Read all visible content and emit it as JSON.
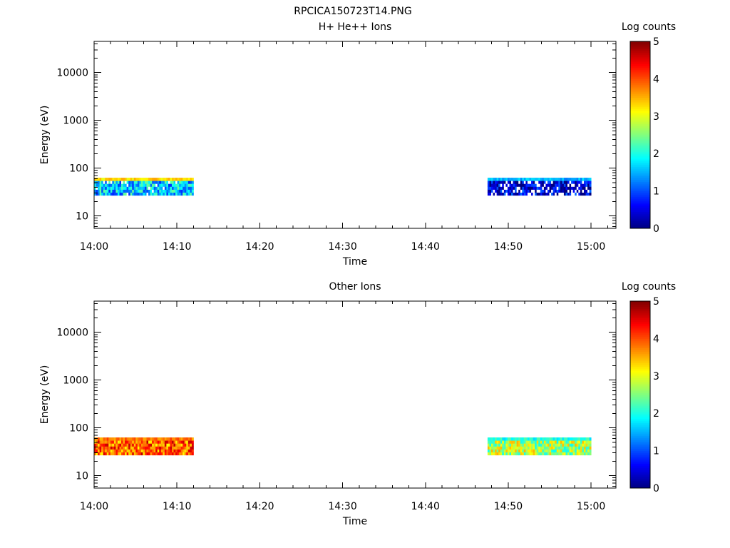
{
  "figure_title": "RPCICA150723T14.PNG",
  "chart_data": [
    {
      "type": "heatmap",
      "title": "H+ He++ Ions",
      "xlabel": "Time",
      "ylabel": "Energy (eV)",
      "x_ticks": [
        "14:00",
        "14:10",
        "14:20",
        "14:30",
        "14:40",
        "14:50",
        "15:00"
      ],
      "xlim": [
        "14:00",
        "15:03"
      ],
      "y_scale": "log",
      "ylim": [
        5.5,
        45000
      ],
      "y_ticks": [
        "10",
        "100",
        "1000",
        "10000"
      ],
      "colorbar": {
        "label": "Log counts",
        "range": [
          0,
          5
        ],
        "ticks": [
          "0",
          "1",
          "2",
          "3",
          "4",
          "5"
        ],
        "colormap": "jet"
      },
      "data_blocks": [
        {
          "time_start": "14:00",
          "time_end": "14:12",
          "energy_range_eV": [
            27,
            63
          ],
          "typical_log_counts": 1.6,
          "top_band_log_counts": 3.3,
          "description_level": "mostly 1-2, with gaps (no data)"
        },
        {
          "time_start": "14:47:30",
          "time_end": "15:00",
          "energy_range_eV": [
            27,
            63
          ],
          "typical_log_counts": 0.4,
          "top_band_log_counts": 1.5,
          "description_level": "mostly 0-1, with many gaps"
        }
      ]
    },
    {
      "type": "heatmap",
      "title": "Other Ions",
      "xlabel": "Time",
      "ylabel": "Energy (eV)",
      "x_ticks": [
        "14:00",
        "14:10",
        "14:20",
        "14:30",
        "14:40",
        "14:50",
        "15:00"
      ],
      "xlim": [
        "14:00",
        "15:03"
      ],
      "y_scale": "log",
      "ylim": [
        5.5,
        45000
      ],
      "y_ticks": [
        "10",
        "100",
        "1000",
        "10000"
      ],
      "colorbar": {
        "label": "Log counts",
        "range": [
          0,
          5
        ],
        "ticks": [
          "0",
          "1",
          "2",
          "3",
          "4",
          "5"
        ],
        "colormap": "jet"
      },
      "data_blocks": [
        {
          "time_start": "14:00",
          "time_end": "14:12",
          "energy_range_eV": [
            27,
            63
          ],
          "typical_log_counts": 3.9,
          "top_band_log_counts": 3.8,
          "description_level": "mostly 3.5-4.5"
        },
        {
          "time_start": "14:47:30",
          "time_end": "15:00",
          "energy_range_eV": [
            27,
            63
          ],
          "typical_log_counts": 2.7,
          "top_band_log_counts": 2.0,
          "description_level": "mostly 2-3.5"
        }
      ]
    }
  ]
}
